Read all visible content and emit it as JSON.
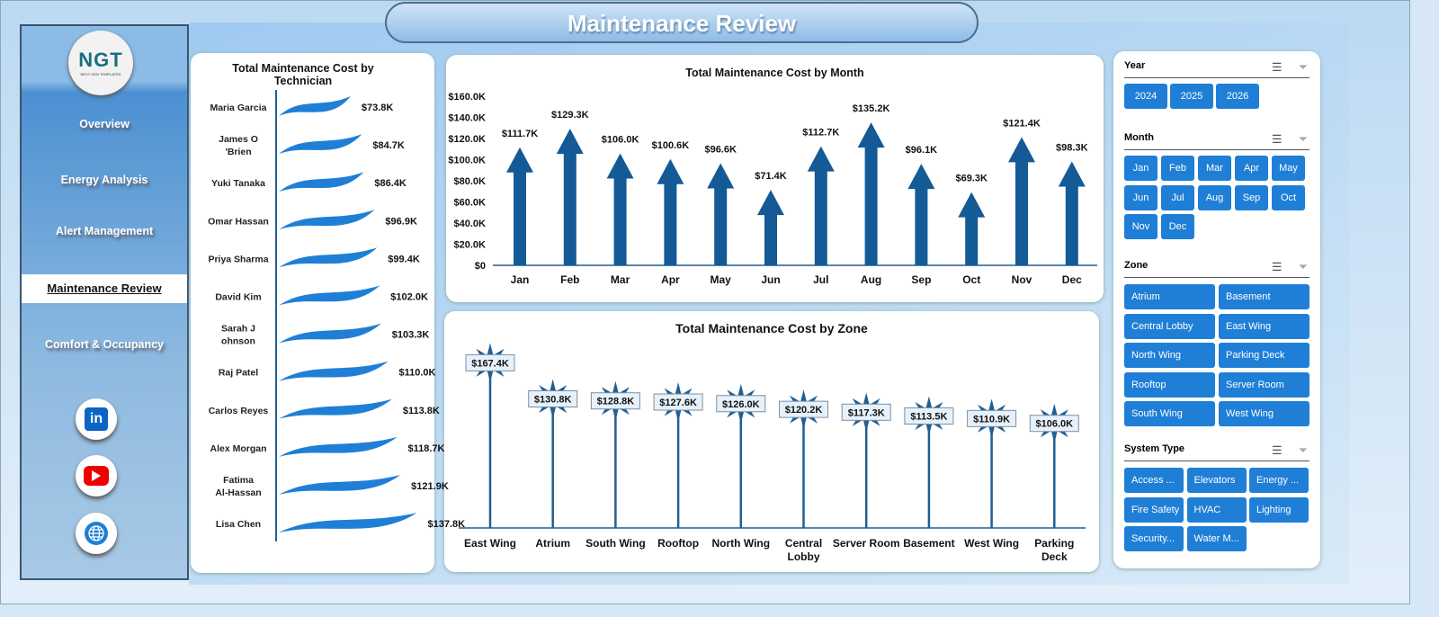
{
  "header": {
    "title": "Maintenance Review"
  },
  "sidebar": {
    "logo_text": "NGT",
    "logo_sub": "NEXT GEN TEMPLATES",
    "items": [
      {
        "label": "Overview"
      },
      {
        "label": "Energy Analysis"
      },
      {
        "label": "Alert Management"
      },
      {
        "label": "Maintenance Review",
        "active": true
      },
      {
        "label": "Comfort & Occupancy"
      }
    ],
    "social": [
      {
        "icon": "linkedin-icon",
        "label": "in"
      },
      {
        "icon": "youtube-icon"
      },
      {
        "icon": "globe-icon"
      }
    ]
  },
  "chart_data": [
    {
      "type": "bar",
      "title": "Total Maintenance Cost  by Technician",
      "orientation": "horizontal",
      "categories": [
        "Maria Garcia",
        "James O'Brien",
        "Yuki Tanaka",
        "Omar Hassan",
        "Priya Sharma",
        "David Kim",
        "Sarah Johnson",
        "Raj Patel",
        "Carlos Reyes",
        "Alex Morgan",
        "Fatima Al-Hassan",
        "Lisa Chen"
      ],
      "values": [
        73.8,
        84.7,
        86.4,
        96.9,
        99.4,
        102.0,
        103.3,
        110.0,
        113.8,
        118.7,
        121.9,
        137.8
      ],
      "labels": [
        "$73.8K",
        "$84.7K",
        "$86.4K",
        "$96.9K",
        "$99.4K",
        "$102.0K",
        "$103.3K",
        "$110.0K",
        "$113.8K",
        "$118.7K",
        "$121.9K",
        "$137.8K"
      ],
      "unit": "$K",
      "color": "#1f7fd6"
    },
    {
      "type": "bar",
      "title": "Total Maintenance Cost by Month",
      "categories": [
        "Jan",
        "Feb",
        "Mar",
        "Apr",
        "May",
        "Jun",
        "Jul",
        "Aug",
        "Sep",
        "Oct",
        "Nov",
        "Dec"
      ],
      "values": [
        111.7,
        129.3,
        106.0,
        100.6,
        96.6,
        71.4,
        112.7,
        135.2,
        96.1,
        69.3,
        121.4,
        98.3
      ],
      "labels": [
        "$111.7K",
        "$129.3K",
        "$106.0K",
        "$100.6K",
        "$96.6K",
        "$71.4K",
        "$112.7K",
        "$135.2K",
        "$96.1K",
        "$69.3K",
        "$121.4K",
        "$98.3K"
      ],
      "yticks": [
        "$0",
        "$20.0K",
        "$40.0K",
        "$60.0K",
        "$80.0K",
        "$100.0K",
        "$120.0K",
        "$140.0K",
        "$160.0K"
      ],
      "ylim": [
        0,
        160
      ],
      "unit": "$K",
      "color": "#135a96"
    },
    {
      "type": "bar",
      "title": "Total Maintenance  Cost  by Zone",
      "categories": [
        "East Wing",
        "Atrium",
        "South Wing",
        "Rooftop",
        "North Wing",
        "Central Lobby",
        "Server Room",
        "Basement",
        "West Wing",
        "Parking Deck"
      ],
      "values": [
        167.4,
        130.8,
        128.8,
        127.6,
        126.0,
        120.2,
        117.3,
        113.5,
        110.9,
        106.0
      ],
      "labels": [
        "$167.4K",
        "$130.8K",
        "$128.8K",
        "$127.6K",
        "$126.0K",
        "$120.2K",
        "$117.3K",
        "$113.5K",
        "$110.9K",
        "$106.0K"
      ],
      "unit": "$K",
      "color": "#1f5f94"
    }
  ],
  "slicers": [
    {
      "title": "Year",
      "items": [
        "2024",
        "2025",
        "2026"
      ]
    },
    {
      "title": "Month",
      "items": [
        "Jan",
        "Feb",
        "Mar",
        "Apr",
        "May",
        "Jun",
        "Jul",
        "Aug",
        "Sep",
        "Oct",
        "Nov",
        "Dec"
      ]
    },
    {
      "title": "Zone",
      "items": [
        "Atrium",
        "Basement",
        "Central Lobby",
        "East Wing",
        "North Wing",
        "Parking Deck",
        "Rooftop",
        "Server Room",
        "South Wing",
        "West Wing"
      ]
    },
    {
      "title": "System Type",
      "items": [
        "Access ...",
        "Elevators",
        "Energy ...",
        "Fire Safety",
        "HVAC",
        "Lighting",
        "Security...",
        "Water M..."
      ]
    }
  ],
  "colors": {
    "accent": "#1f7fd6",
    "dark": "#135a96"
  }
}
